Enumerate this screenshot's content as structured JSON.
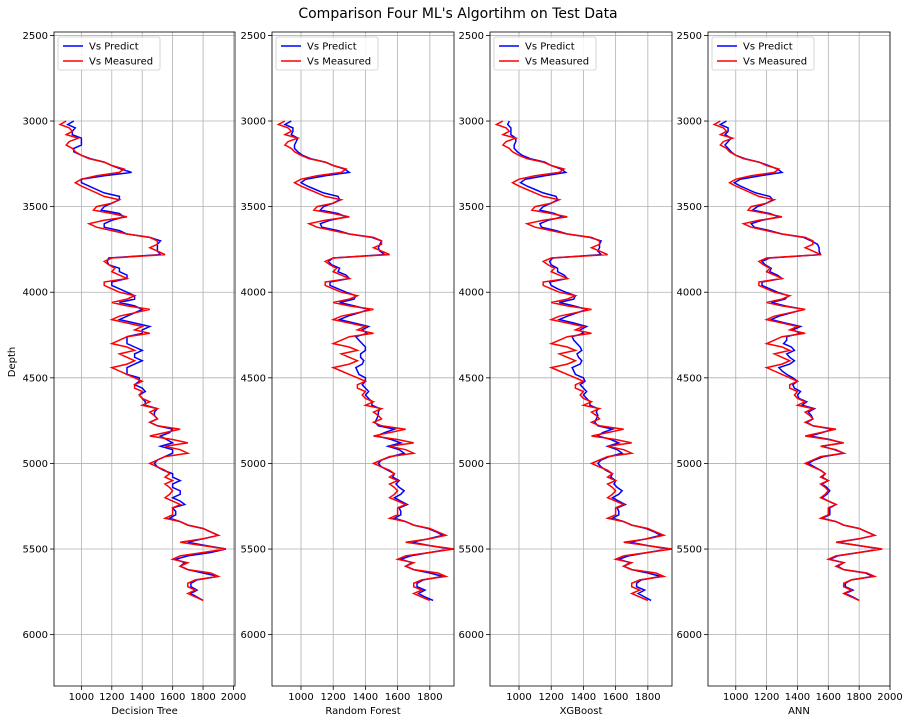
{
  "chart_data": {
    "title": "Comparison Four ML's Algortihm on Test Data",
    "ylabel": "Depth",
    "type": "line",
    "legend": {
      "position": "top-left",
      "entries": [
        "Vs Predict",
        "Vs Measured"
      ]
    },
    "colors": {
      "predict": "#0000ff",
      "measured": "#ff0000",
      "grid": "#b0b0b0"
    },
    "grid": true,
    "y_inverted": true,
    "ylim": [
      6300,
      2480
    ],
    "yticks": [
      2500,
      3000,
      3500,
      4000,
      4500,
      5000,
      5500,
      6000
    ],
    "depth": [
      3000,
      3020,
      3040,
      3060,
      3080,
      3100,
      3120,
      3140,
      3160,
      3180,
      3200,
      3220,
      3240,
      3260,
      3280,
      3300,
      3320,
      3340,
      3360,
      3380,
      3400,
      3420,
      3440,
      3460,
      3480,
      3500,
      3520,
      3540,
      3560,
      3580,
      3600,
      3620,
      3640,
      3660,
      3680,
      3700,
      3720,
      3740,
      3760,
      3780,
      3800,
      3820,
      3840,
      3860,
      3880,
      3900,
      3920,
      3940,
      3960,
      3980,
      4000,
      4020,
      4040,
      4060,
      4080,
      4100,
      4120,
      4140,
      4160,
      4180,
      4200,
      4220,
      4240,
      4260,
      4280,
      4300,
      4320,
      4340,
      4360,
      4380,
      4400,
      4420,
      4440,
      4460,
      4480,
      4500,
      4520,
      4540,
      4560,
      4580,
      4600,
      4620,
      4640,
      4660,
      4680,
      4700,
      4720,
      4740,
      4760,
      4780,
      4800,
      4820,
      4840,
      4860,
      4880,
      4900,
      4920,
      4940,
      4960,
      4980,
      5000,
      5020,
      5040,
      5060,
      5080,
      5100,
      5120,
      5140,
      5160,
      5180,
      5200,
      5220,
      5240,
      5260,
      5280,
      5300,
      5320,
      5340,
      5360,
      5380,
      5400,
      5420,
      5440,
      5460,
      5480,
      5500,
      5520,
      5540,
      5560,
      5580,
      5600,
      5620,
      5640,
      5660,
      5680,
      5700,
      5720,
      5740,
      5760,
      5780,
      5800
    ],
    "measured": [
      900,
      860,
      920,
      940,
      900,
      980,
      920,
      900,
      940,
      960,
      1000,
      1050,
      1150,
      1200,
      1280,
      1250,
      1100,
      1000,
      960,
      1000,
      1050,
      1100,
      1150,
      1250,
      1200,
      1100,
      1080,
      1200,
      1300,
      1150,
      1050,
      1100,
      1200,
      1300,
      1450,
      1500,
      1500,
      1450,
      1500,
      1550,
      1200,
      1150,
      1180,
      1220,
      1200,
      1250,
      1300,
      1150,
      1150,
      1200,
      1250,
      1350,
      1300,
      1200,
      1300,
      1450,
      1350,
      1250,
      1200,
      1300,
      1400,
      1350,
      1450,
      1300,
      1250,
      1200,
      1300,
      1350,
      1250,
      1300,
      1350,
      1300,
      1200,
      1250,
      1300,
      1350,
      1400,
      1350,
      1350,
      1400,
      1380,
      1400,
      1450,
      1400,
      1500,
      1450,
      1480,
      1500,
      1450,
      1500,
      1650,
      1550,
      1450,
      1600,
      1700,
      1550,
      1650,
      1700,
      1550,
      1500,
      1450,
      1500,
      1550,
      1580,
      1550,
      1600,
      1550,
      1580,
      1600,
      1580,
      1550,
      1600,
      1650,
      1600,
      1600,
      1600,
      1550,
      1650,
      1700,
      1800,
      1850,
      1900,
      1800,
      1650,
      1800,
      1950,
      1800,
      1650,
      1600,
      1700,
      1650,
      1700,
      1850,
      1900,
      1750,
      1700,
      1700,
      1750,
      1700,
      1750,
      1800
    ],
    "panels": [
      {
        "xlabel": "Decision Tree",
        "xlim": [
          820,
          2010
        ],
        "xticks": [
          1000,
          1200,
          1400,
          1600,
          1800,
          2000
        ],
        "predict": [
          950,
          910,
          960,
          940,
          940,
          1000,
          1000,
          1000,
          950,
          950,
          1000,
          1060,
          1150,
          1200,
          1260,
          1330,
          1150,
          1000,
          1000,
          1050,
          1100,
          1150,
          1250,
          1250,
          1200,
          1150,
          1130,
          1250,
          1280,
          1200,
          1150,
          1150,
          1250,
          1300,
          1450,
          1520,
          1500,
          1500,
          1500,
          1520,
          1180,
          1170,
          1180,
          1250,
          1250,
          1300,
          1300,
          1200,
          1200,
          1250,
          1300,
          1350,
          1350,
          1250,
          1350,
          1400,
          1350,
          1300,
          1250,
          1350,
          1450,
          1400,
          1400,
          1300,
          1300,
          1300,
          1350,
          1400,
          1350,
          1350,
          1400,
          1350,
          1300,
          1300,
          1300,
          1380,
          1380,
          1350,
          1400,
          1420,
          1380,
          1400,
          1420,
          1420,
          1500,
          1480,
          1480,
          1500,
          1450,
          1500,
          1600,
          1580,
          1520,
          1560,
          1600,
          1520,
          1600,
          1600,
          1550,
          1500,
          1480,
          1500,
          1540,
          1600,
          1600,
          1650,
          1600,
          1600,
          1650,
          1650,
          1600,
          1650,
          1680,
          1600,
          1620,
          1620,
          1580,
          1650,
          1700,
          1800,
          1850,
          1900,
          1800,
          1700,
          1820,
          1950,
          1850,
          1700,
          1620,
          1680,
          1650,
          1700,
          1800,
          1900,
          1760,
          1720,
          1720,
          1760,
          1720,
          1760,
          1800
        ]
      },
      {
        "xlabel": "Random Forest",
        "xlim": [
          820,
          1950
        ],
        "xticks": [
          1000,
          1200,
          1400,
          1600,
          1800
        ],
        "predict": [
          940,
          900,
          950,
          950,
          940,
          980,
          970,
          960,
          960,
          980,
          1010,
          1060,
          1150,
          1200,
          1270,
          1300,
          1150,
          1030,
          1000,
          1040,
          1090,
          1140,
          1230,
          1240,
          1200,
          1140,
          1120,
          1230,
          1280,
          1180,
          1120,
          1130,
          1230,
          1300,
          1440,
          1500,
          1490,
          1480,
          1490,
          1520,
          1200,
          1170,
          1190,
          1240,
          1230,
          1280,
          1300,
          1180,
          1180,
          1230,
          1280,
          1340,
          1330,
          1240,
          1330,
          1420,
          1360,
          1290,
          1240,
          1330,
          1420,
          1380,
          1410,
          1340,
          1360,
          1380,
          1400,
          1400,
          1370,
          1370,
          1390,
          1380,
          1340,
          1350,
          1360,
          1400,
          1400,
          1380,
          1400,
          1420,
          1400,
          1420,
          1440,
          1440,
          1490,
          1480,
          1480,
          1470,
          1460,
          1480,
          1580,
          1520,
          1470,
          1560,
          1620,
          1540,
          1610,
          1640,
          1560,
          1500,
          1480,
          1500,
          1540,
          1580,
          1570,
          1610,
          1590,
          1610,
          1640,
          1620,
          1580,
          1620,
          1660,
          1610,
          1620,
          1620,
          1580,
          1650,
          1700,
          1790,
          1840,
          1880,
          1790,
          1690,
          1800,
          1930,
          1800,
          1680,
          1620,
          1690,
          1650,
          1700,
          1800,
          1880,
          1760,
          1720,
          1720,
          1770,
          1730,
          1770,
          1820
        ]
      },
      {
        "xlabel": "XGBoost",
        "xlim": [
          820,
          1950
        ],
        "xticks": [
          1000,
          1200,
          1400,
          1600,
          1800
        ],
        "predict": [
          940,
          930,
          950,
          950,
          950,
          980,
          980,
          970,
          970,
          990,
          1020,
          1070,
          1160,
          1200,
          1260,
          1290,
          1160,
          1040,
          1010,
          1050,
          1100,
          1150,
          1230,
          1240,
          1200,
          1150,
          1130,
          1220,
          1270,
          1180,
          1130,
          1140,
          1230,
          1300,
          1440,
          1510,
          1500,
          1500,
          1490,
          1510,
          1210,
          1190,
          1200,
          1240,
          1240,
          1280,
          1300,
          1190,
          1200,
          1240,
          1290,
          1350,
          1340,
          1250,
          1340,
          1420,
          1360,
          1300,
          1250,
          1340,
          1420,
          1380,
          1400,
          1330,
          1340,
          1360,
          1380,
          1390,
          1360,
          1370,
          1390,
          1380,
          1330,
          1340,
          1350,
          1400,
          1410,
          1380,
          1400,
          1420,
          1400,
          1420,
          1440,
          1440,
          1490,
          1480,
          1490,
          1480,
          1470,
          1490,
          1580,
          1520,
          1490,
          1570,
          1620,
          1550,
          1610,
          1640,
          1560,
          1510,
          1490,
          1510,
          1540,
          1580,
          1570,
          1600,
          1590,
          1610,
          1640,
          1620,
          1580,
          1620,
          1660,
          1610,
          1620,
          1620,
          1580,
          1650,
          1700,
          1790,
          1840,
          1880,
          1790,
          1690,
          1800,
          1930,
          1800,
          1680,
          1620,
          1690,
          1650,
          1700,
          1800,
          1880,
          1760,
          1730,
          1730,
          1780,
          1740,
          1780,
          1820
        ]
      },
      {
        "xlabel": "ANN",
        "xlim": [
          820,
          2000
        ],
        "xticks": [
          1000,
          1200,
          1400,
          1600,
          1800,
          2000
        ],
        "predict": [
          940,
          900,
          950,
          950,
          930,
          970,
          950,
          930,
          950,
          970,
          1000,
          1060,
          1150,
          1210,
          1270,
          1300,
          1160,
          1030,
          990,
          1030,
          1080,
          1130,
          1220,
          1240,
          1200,
          1140,
          1110,
          1220,
          1280,
          1170,
          1100,
          1120,
          1220,
          1300,
          1440,
          1490,
          1530,
          1540,
          1540,
          1550,
          1220,
          1170,
          1190,
          1230,
          1220,
          1270,
          1300,
          1170,
          1170,
          1220,
          1270,
          1340,
          1320,
          1230,
          1320,
          1440,
          1360,
          1280,
          1230,
          1320,
          1420,
          1370,
          1420,
          1330,
          1330,
          1310,
          1360,
          1380,
          1330,
          1350,
          1380,
          1350,
          1280,
          1300,
          1330,
          1370,
          1400,
          1370,
          1380,
          1420,
          1400,
          1410,
          1460,
          1430,
          1510,
          1470,
          1490,
          1500,
          1460,
          1500,
          1630,
          1560,
          1480,
          1610,
          1690,
          1560,
          1640,
          1700,
          1570,
          1510,
          1470,
          1510,
          1550,
          1580,
          1560,
          1600,
          1560,
          1590,
          1610,
          1590,
          1560,
          1600,
          1650,
          1610,
          1610,
          1610,
          1560,
          1650,
          1700,
          1800,
          1850,
          1900,
          1800,
          1660,
          1800,
          1940,
          1800,
          1660,
          1610,
          1700,
          1660,
          1700,
          1840,
          1890,
          1750,
          1710,
          1710,
          1760,
          1710,
          1760,
          1800
        ]
      }
    ]
  }
}
